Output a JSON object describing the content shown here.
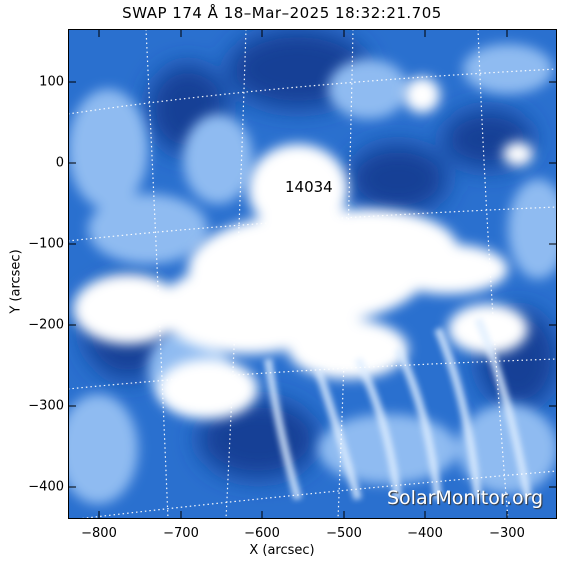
{
  "image": {
    "title": "SWAP 174 Å 18–Mar–2025 18:32:21.705",
    "xlabel": "X (arcsec)",
    "ylabel": "Y (arcsec)",
    "x_ticks": [
      "−800",
      "−700",
      "−600",
      "−500",
      "−400",
      "−300"
    ],
    "y_ticks": [
      "100",
      "0",
      "−100",
      "−200",
      "−300",
      "−400"
    ],
    "region_label": "14034",
    "watermark": "SolarMonitor.org",
    "colors": {
      "background_blue": "#1d63c8",
      "bright": "#ffffff",
      "dark": "#0f3f9a"
    }
  }
}
